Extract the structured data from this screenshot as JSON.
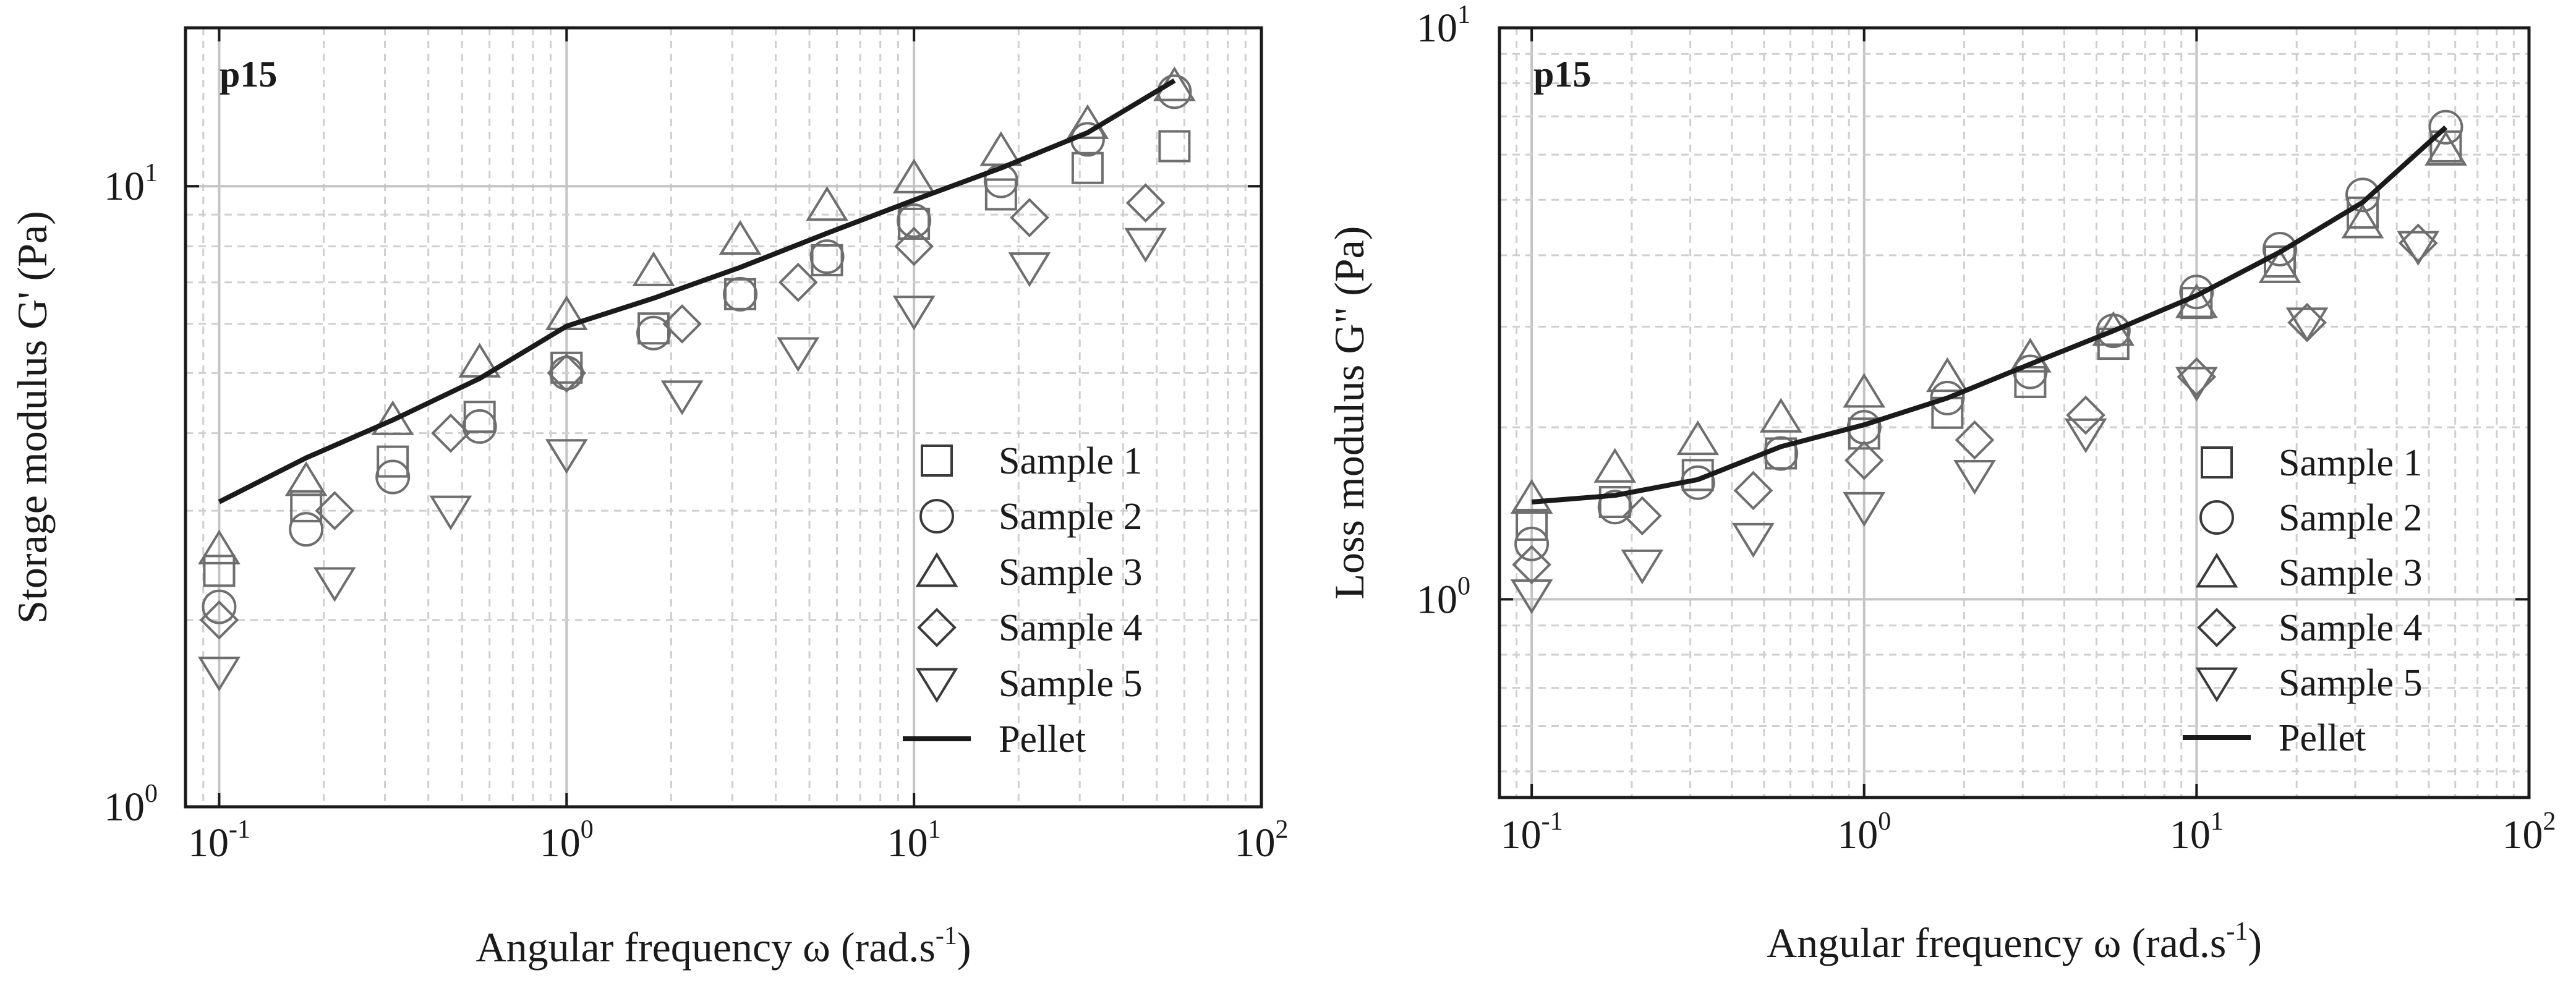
{
  "chart_data": [
    {
      "type": "scatter",
      "panel_label": "p15",
      "title": "",
      "xlabel": "Angular frequency ω (rad.s",
      "xlabel_sup": "-1",
      "xlabel_end": ")",
      "ylabel": "Storage modulus G' (Pa)",
      "xscale": "log",
      "yscale": "log",
      "xlim": [
        0.08,
        100
      ],
      "ylim": [
        1,
        18
      ],
      "x_ticks": [
        {
          "base": "10",
          "exp": "-1",
          "value": 0.1
        },
        {
          "base": "10",
          "exp": "0",
          "value": 1
        },
        {
          "base": "10",
          "exp": "1",
          "value": 10
        },
        {
          "base": "10",
          "exp": "2",
          "value": 100
        }
      ],
      "y_ticks": [
        {
          "base": "10",
          "exp": "0",
          "value": 1
        },
        {
          "base": "10",
          "exp": "1",
          "value": 10
        }
      ],
      "grid": true,
      "legend_position": "bottom-right",
      "series": [
        {
          "name": "Sample 1",
          "marker": "square",
          "x": [
            0.1,
            0.178,
            0.316,
            0.562,
            1.0,
            1.78,
            3.16,
            5.62,
            10.0,
            17.8,
            31.6,
            56.2
          ],
          "y": [
            2.4,
            3.05,
            3.6,
            4.25,
            5.1,
            5.9,
            6.7,
            7.6,
            8.7,
            9.7,
            10.7,
            11.6
          ]
        },
        {
          "name": "Sample 2",
          "marker": "circle",
          "x": [
            0.1,
            0.178,
            0.316,
            0.562,
            1.0,
            1.78,
            3.16,
            5.62,
            10.0,
            17.8,
            31.6,
            56.2
          ],
          "y": [
            2.1,
            2.8,
            3.4,
            4.1,
            5.0,
            5.8,
            6.7,
            7.7,
            8.8,
            10.2,
            11.9,
            14.2
          ]
        },
        {
          "name": "Sample 3",
          "marker": "triangle-up",
          "x": [
            0.1,
            0.178,
            0.316,
            0.562,
            1.0,
            1.78,
            3.16,
            5.62,
            10.0,
            17.8,
            31.6,
            56.2
          ],
          "y": [
            2.6,
            3.35,
            4.2,
            5.2,
            6.2,
            7.3,
            8.2,
            9.3,
            10.3,
            11.4,
            12.6,
            14.5
          ]
        },
        {
          "name": "Sample 4",
          "marker": "diamond",
          "x": [
            0.1,
            0.215,
            0.464,
            1.0,
            2.15,
            4.64,
            10.0,
            21.5,
            46.4
          ],
          "y": [
            2.0,
            3.0,
            4.0,
            5.0,
            6.0,
            7.0,
            8.0,
            8.9,
            9.4
          ]
        },
        {
          "name": "Sample 5",
          "marker": "triangle-down",
          "x": [
            0.1,
            0.215,
            0.464,
            1.0,
            2.15,
            4.64,
            10.0,
            21.5,
            46.4
          ],
          "y": [
            1.65,
            2.3,
            3.0,
            3.7,
            4.6,
            5.4,
            6.3,
            7.4,
            8.1
          ]
        },
        {
          "name": "Pellet",
          "marker": "line",
          "x": [
            0.1,
            0.178,
            0.316,
            0.562,
            1.0,
            1.78,
            3.16,
            5.62,
            10.0,
            17.8,
            31.6,
            56.2
          ],
          "y": [
            3.1,
            3.65,
            4.2,
            4.9,
            5.95,
            6.6,
            7.4,
            8.4,
            9.5,
            10.7,
            12.2,
            14.8
          ]
        }
      ]
    },
    {
      "type": "scatter",
      "panel_label": "p15",
      "title": "",
      "xlabel": "Angular frequency ω (rad.s",
      "xlabel_sup": "-1",
      "xlabel_end": ")",
      "ylabel": "Loss modulus G\" (Pa)",
      "xscale": "log",
      "yscale": "log",
      "xlim": [
        0.08,
        100
      ],
      "ylim": [
        0.45,
        10
      ],
      "x_ticks": [
        {
          "base": "10",
          "exp": "-1",
          "value": 0.1
        },
        {
          "base": "10",
          "exp": "0",
          "value": 1
        },
        {
          "base": "10",
          "exp": "1",
          "value": 10
        },
        {
          "base": "10",
          "exp": "2",
          "value": 100
        }
      ],
      "y_ticks": [
        {
          "base": "10",
          "exp": "0",
          "value": 1
        },
        {
          "base": "10",
          "exp": "1",
          "value": 10
        }
      ],
      "y_tick_label_format": "decimal",
      "grid": true,
      "legend_position": "bottom-right",
      "series": [
        {
          "name": "Sample 1",
          "marker": "square",
          "x": [
            0.1,
            0.178,
            0.316,
            0.562,
            1.0,
            1.78,
            3.16,
            5.62,
            10.0,
            17.8,
            31.6,
            56.2
          ],
          "y": [
            1.35,
            1.48,
            1.65,
            1.8,
            1.95,
            2.12,
            2.4,
            2.8,
            3.3,
            3.9,
            4.75,
            6.2
          ]
        },
        {
          "name": "Sample 2",
          "marker": "circle",
          "x": [
            0.1,
            0.178,
            0.316,
            0.562,
            1.0,
            1.78,
            3.16,
            5.62,
            10.0,
            17.8,
            31.6,
            56.2
          ],
          "y": [
            1.25,
            1.45,
            1.6,
            1.8,
            2.0,
            2.25,
            2.5,
            2.95,
            3.45,
            4.1,
            5.1,
            6.7
          ]
        },
        {
          "name": "Sample 3",
          "marker": "triangle-up",
          "x": [
            0.1,
            0.178,
            0.316,
            0.562,
            1.0,
            1.78,
            3.16,
            5.62,
            10.0,
            17.8,
            31.6,
            56.2
          ],
          "y": [
            1.5,
            1.7,
            1.9,
            2.08,
            2.3,
            2.45,
            2.65,
            2.95,
            3.3,
            3.8,
            4.55,
            6.1
          ]
        },
        {
          "name": "Sample 4",
          "marker": "diamond",
          "x": [
            0.1,
            0.215,
            0.464,
            1.0,
            2.15,
            4.64,
            10.0,
            21.5,
            46.4
          ],
          "y": [
            1.15,
            1.4,
            1.55,
            1.75,
            1.9,
            2.1,
            2.45,
            3.05,
            4.2
          ]
        },
        {
          "name": "Sample 5",
          "marker": "triangle-down",
          "x": [
            0.1,
            0.215,
            0.464,
            1.0,
            2.15,
            4.64,
            10.0,
            21.5,
            46.4
          ],
          "y": [
            1.02,
            1.15,
            1.28,
            1.45,
            1.65,
            1.95,
            2.4,
            3.05,
            4.15
          ]
        },
        {
          "name": "Pellet",
          "marker": "line",
          "x": [
            0.1,
            0.178,
            0.316,
            0.562,
            1.0,
            1.78,
            3.16,
            5.62,
            10.0,
            17.8,
            31.6,
            56.2
          ],
          "y": [
            1.48,
            1.52,
            1.62,
            1.85,
            2.02,
            2.25,
            2.58,
            2.95,
            3.4,
            4.05,
            4.95,
            6.7
          ]
        }
      ]
    }
  ]
}
